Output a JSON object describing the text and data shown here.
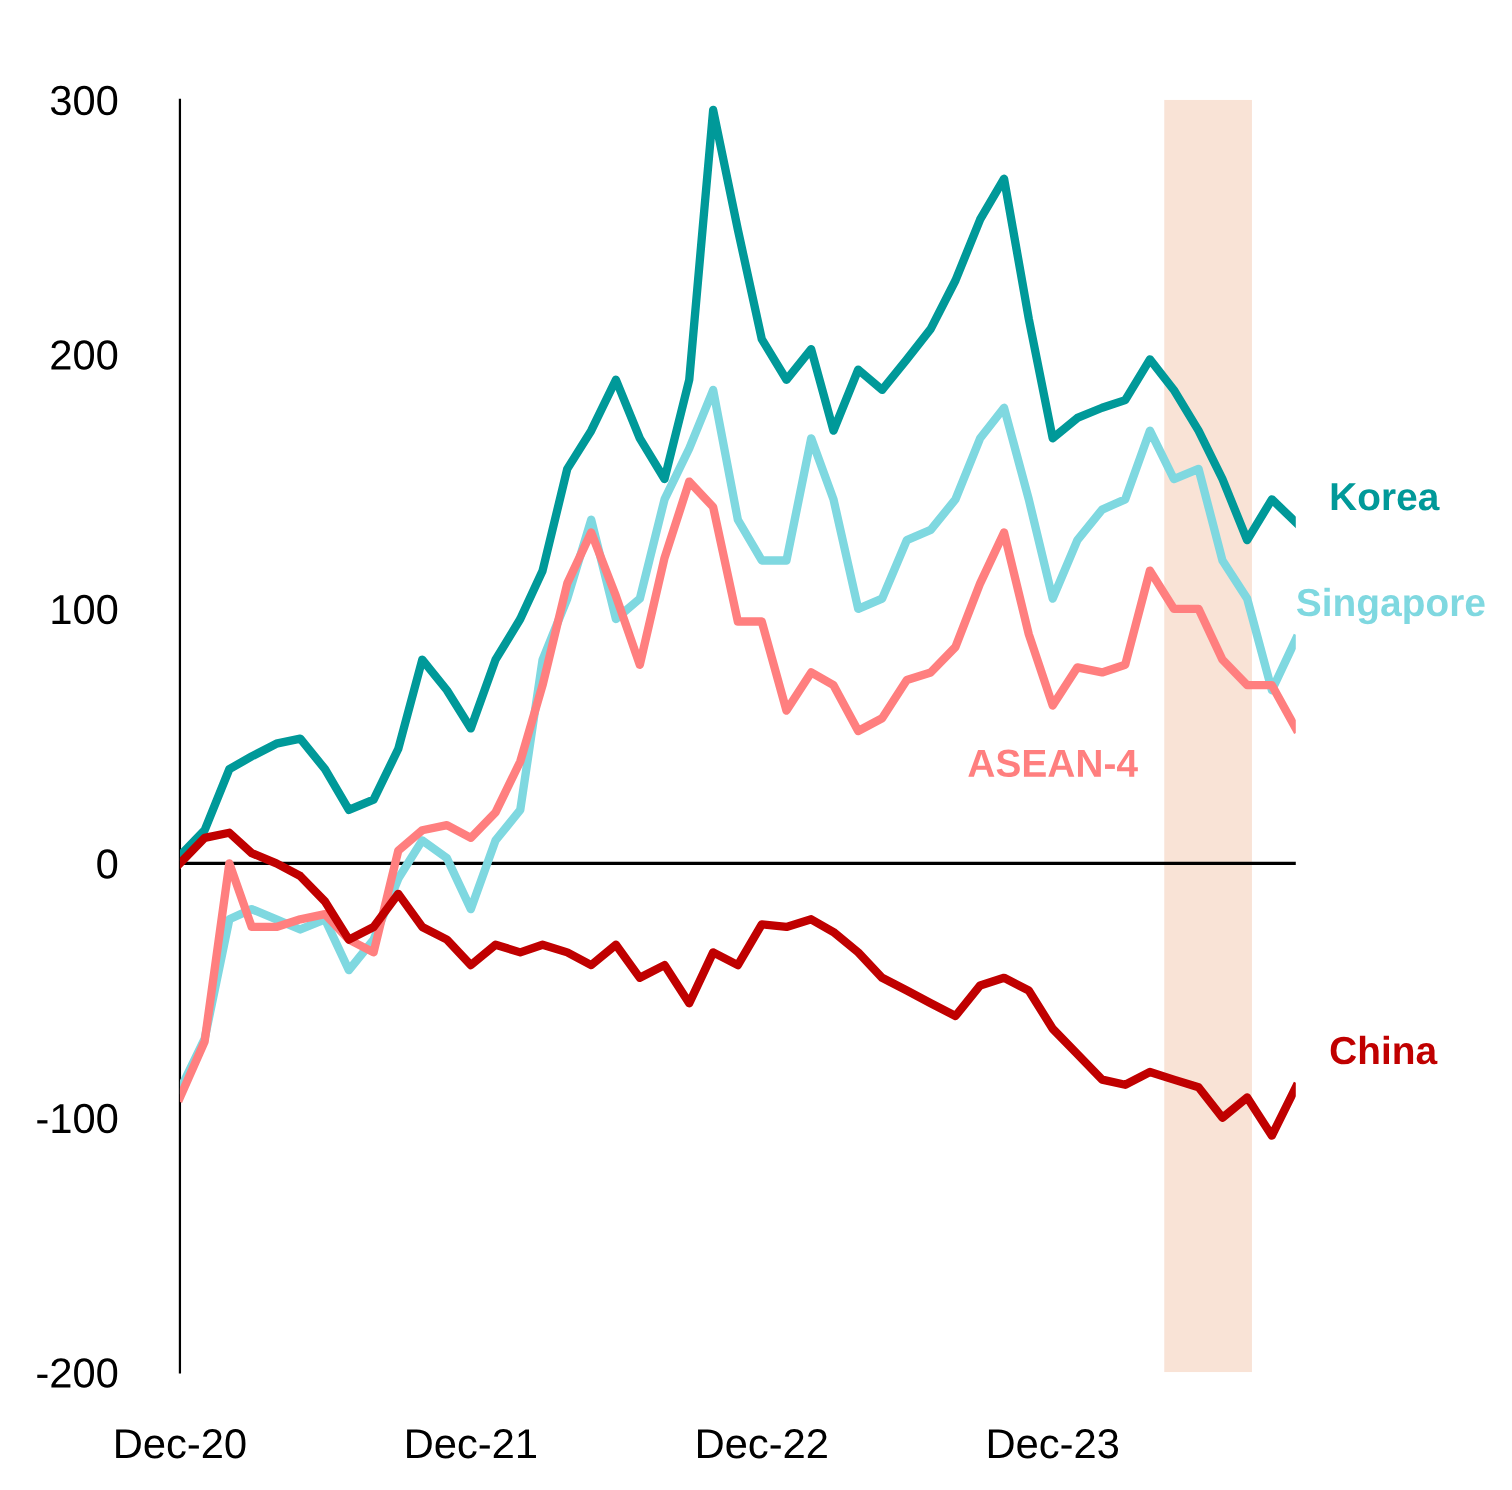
{
  "chart_data": {
    "type": "line",
    "x": [
      "2020-12",
      "2021-01",
      "2021-02",
      "2021-03",
      "2021-04",
      "2021-05",
      "2021-06",
      "2021-07",
      "2021-08",
      "2021-09",
      "2021-10",
      "2021-11",
      "2021-12",
      "2022-01",
      "2022-02",
      "2022-03",
      "2022-04",
      "2022-05",
      "2022-06",
      "2022-07",
      "2022-08",
      "2022-09",
      "2022-10",
      "2022-11",
      "2022-12",
      "2023-01",
      "2023-02",
      "2023-03",
      "2023-04",
      "2023-05",
      "2023-06",
      "2023-07",
      "2023-08",
      "2023-09",
      "2023-10",
      "2023-11",
      "2023-12",
      "2024-01",
      "2024-02",
      "2024-03",
      "2024-04",
      "2024-05",
      "2024-06",
      "2024-07",
      "2024-08",
      "2024-09",
      "2024-10"
    ],
    "series": [
      {
        "name": "Korea",
        "color": "#009999",
        "values": [
          3,
          13,
          37,
          42,
          47,
          49,
          37,
          21,
          25,
          45,
          80,
          68,
          53,
          80,
          96,
          115,
          155,
          170,
          190,
          167,
          151,
          190,
          296,
          249,
          206,
          190,
          202,
          170,
          194,
          186,
          198,
          210,
          229,
          253,
          269,
          214,
          167,
          175,
          179,
          182,
          198,
          186,
          170,
          151,
          127,
          143,
          134
        ]
      },
      {
        "name": "Singapore",
        "color": "#7fd8e0",
        "values": [
          -89,
          -69,
          -22,
          -18,
          -22,
          -26,
          -22,
          -42,
          -30,
          -6,
          9,
          2,
          -18,
          9,
          21,
          80,
          104,
          135,
          96,
          104,
          143,
          163,
          186,
          135,
          119,
          119,
          167,
          143,
          100,
          104,
          127,
          131,
          143,
          167,
          179,
          143,
          104,
          127,
          139,
          143,
          170,
          151,
          155,
          119,
          104,
          68,
          88
        ]
      },
      {
        "name": "ASEAN-4",
        "color": "#ff7f7f",
        "values": [
          -92,
          -70,
          0,
          -25,
          -25,
          -22,
          -20,
          -30,
          -35,
          5,
          13,
          15,
          10,
          20,
          40,
          70,
          110,
          130,
          105,
          78,
          120,
          150,
          140,
          95,
          95,
          60,
          75,
          70,
          52,
          57,
          72,
          75,
          85,
          110,
          130,
          90,
          62,
          77,
          75,
          78,
          115,
          100,
          100,
          80,
          70,
          70,
          53
        ]
      },
      {
        "name": "China",
        "color": "#c00000",
        "values": [
          0,
          10,
          12,
          4,
          0,
          -5,
          -15,
          -30,
          -25,
          -12,
          -25,
          -30,
          -40,
          -32,
          -35,
          -32,
          -35,
          -40,
          -32,
          -45,
          -40,
          -55,
          -35,
          -40,
          -24,
          -25,
          -22,
          -27,
          -35,
          -45,
          -50,
          -55,
          -60,
          -48,
          -45,
          -50,
          -65,
          -75,
          -85,
          -87,
          -82,
          -85,
          -88,
          -100,
          -92,
          -107,
          -88
        ]
      }
    ],
    "xlim": [
      "2020-12",
      "2024-10"
    ],
    "xticks": [
      {
        "value": "2020-12",
        "label": "Dec-20"
      },
      {
        "value": "2021-12",
        "label": "Dec-21"
      },
      {
        "value": "2022-12",
        "label": "Dec-22"
      },
      {
        "value": "2023-12",
        "label": "Dec-23"
      }
    ],
    "ylim": [
      -200,
      300
    ],
    "yticks": [
      -200,
      -100,
      0,
      100,
      200,
      300
    ],
    "ref_lines": [
      {
        "axis": "y",
        "value": 0,
        "color": "#000000"
      }
    ],
    "bands": [
      {
        "axis": "x",
        "from": "2024-04-19",
        "to": "2024-08-07",
        "color": "#f9e3d6"
      }
    ],
    "grid": false,
    "legend": false,
    "marker": "none",
    "line_style": "solid"
  }
}
